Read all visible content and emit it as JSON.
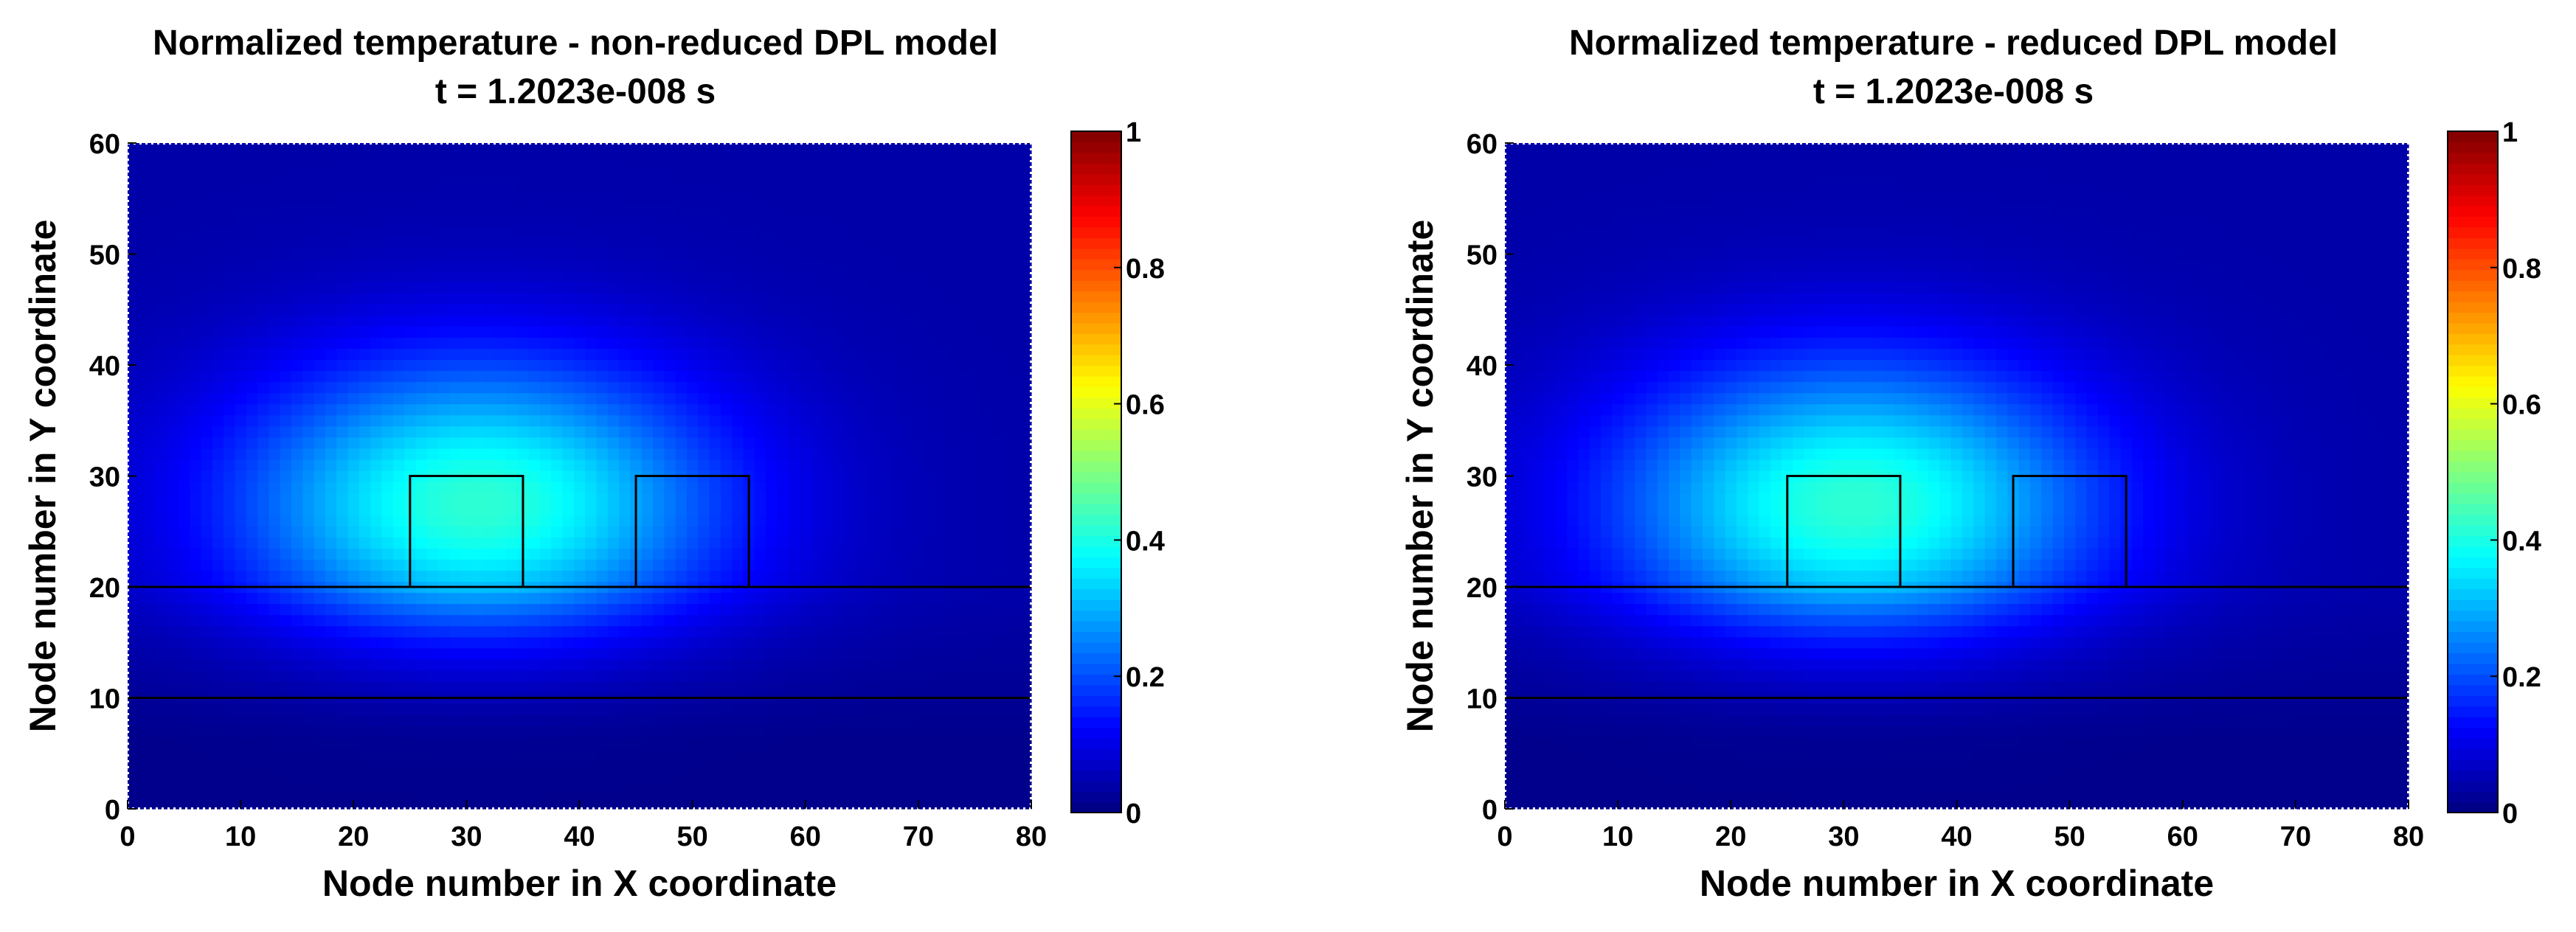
{
  "chart_data": [
    {
      "type": "heatmap",
      "title": "Normalized temperature - non-reduced DPL model",
      "subtitle": "t = 1.2023e-008 s",
      "xlabel": "Node number in X coordinate",
      "ylabel": "Node number in Y coordinate",
      "xlim": [
        0,
        80
      ],
      "ylim": [
        0,
        60
      ],
      "xticks": [
        0,
        10,
        20,
        30,
        40,
        50,
        60,
        70,
        80
      ],
      "yticks": [
        0,
        10,
        20,
        30,
        40,
        50,
        60
      ],
      "colorbar": {
        "range": [
          0,
          1
        ],
        "ticks": [
          "0",
          "0.2",
          "0.4",
          "0.6",
          "0.8",
          "1"
        ],
        "colormap": "jet"
      },
      "hotspot": {
        "x": 31,
        "y": 27.5,
        "peak": 0.42
      },
      "layer_lines_y": [
        10,
        20
      ],
      "boxes": [
        {
          "x0": 25,
          "x1": 35,
          "y0": 20,
          "y1": 30
        },
        {
          "x0": 45,
          "x1": 55,
          "y0": 20,
          "y1": 30
        }
      ]
    },
    {
      "type": "heatmap",
      "title": "Normalized temperature - reduced DPL model",
      "subtitle": "t = 1.2023e-008 s",
      "xlabel": "Node number in X coordinate",
      "ylabel": "Node number in Y coordinate",
      "xlim": [
        0,
        80
      ],
      "ylim": [
        0,
        60
      ],
      "xticks": [
        0,
        10,
        20,
        30,
        40,
        50,
        60,
        70,
        80
      ],
      "yticks": [
        0,
        10,
        20,
        30,
        40,
        50,
        60
      ],
      "colorbar": {
        "range": [
          0,
          1
        ],
        "ticks": [
          "0",
          "0.2",
          "0.4",
          "0.6",
          "0.8",
          "1"
        ],
        "colormap": "jet"
      },
      "hotspot": {
        "x": 31,
        "y": 27.5,
        "peak": 0.42
      },
      "layer_lines_y": [
        10,
        20
      ],
      "boxes": [
        {
          "x0": 25,
          "x1": 35,
          "y0": 20,
          "y1": 30
        },
        {
          "x0": 45,
          "x1": 55,
          "y0": 20,
          "y1": 30
        }
      ]
    }
  ]
}
